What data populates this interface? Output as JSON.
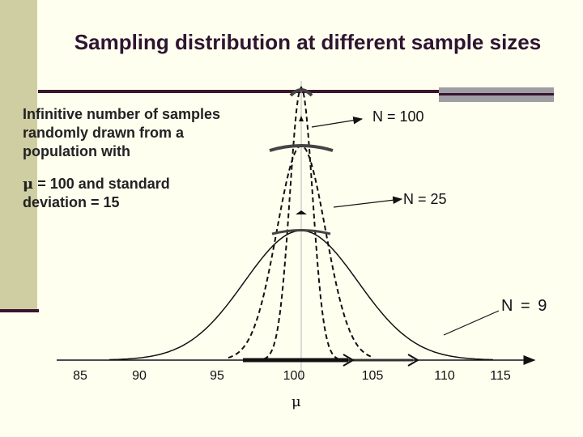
{
  "title": "Sampling distribution at different sample sizes",
  "description": {
    "line1": "Infinitive number of samples randomly drawn from a population with",
    "mu_symbol": "μ",
    "line2": " = 100 and standard deviation = 15"
  },
  "labels": {
    "n100": "N = 100",
    "n25": "N = 25",
    "n9": "N = 9"
  },
  "x_axis": {
    "ticks": [
      "85",
      "90",
      "95",
      "100",
      "105",
      "110",
      "115"
    ],
    "mean_symbol": "μ"
  },
  "distribution": {
    "mean": 100,
    "population_sd": 15,
    "curves": [
      {
        "n": 9,
        "style": "solid"
      },
      {
        "n": 25,
        "style": "dashed"
      },
      {
        "n": 100,
        "style": "dashed"
      }
    ]
  },
  "colors": {
    "sidebar": "#cfcea2",
    "rule": "#3a1530",
    "title": "#2e1530",
    "curve": "#111111"
  }
}
